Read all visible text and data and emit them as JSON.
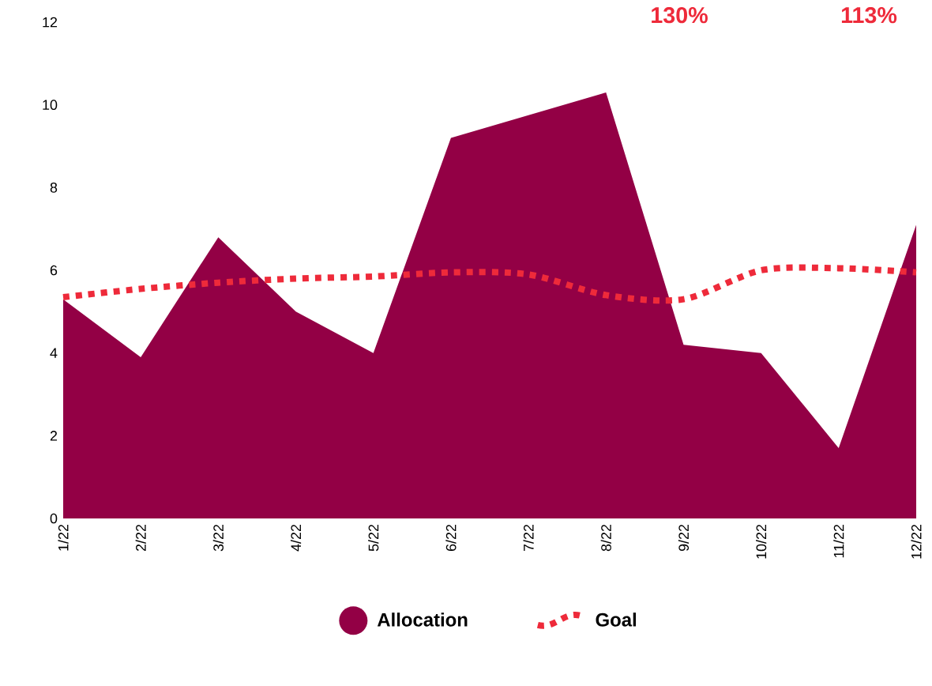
{
  "chart_data": {
    "type": "area",
    "categories": [
      "1/22",
      "2/22",
      "3/22",
      "4/22",
      "5/22",
      "6/22",
      "7/22",
      "8/22",
      "9/22",
      "10/22",
      "11/22",
      "12/22"
    ],
    "series": [
      {
        "name": "Allocation",
        "color": "#930045",
        "values": [
          5.3,
          3.9,
          6.8,
          5.0,
          4.0,
          9.2,
          9.75,
          10.3,
          4.2,
          4.0,
          1.7,
          7.1
        ]
      },
      {
        "name": "Goal",
        "type": "line",
        "color": "#ee2a3a",
        "line_style": "dotted",
        "values": [
          5.35,
          5.55,
          5.7,
          5.8,
          5.85,
          5.95,
          5.9,
          5.4,
          5.3,
          6.0,
          6.05,
          5.95
        ]
      }
    ],
    "ylim": [
      0,
      12
    ],
    "yticks": [
      0,
      2,
      4,
      6,
      8,
      10,
      12
    ],
    "legend": "bottom",
    "annotations": [
      "130%",
      "113%"
    ]
  }
}
